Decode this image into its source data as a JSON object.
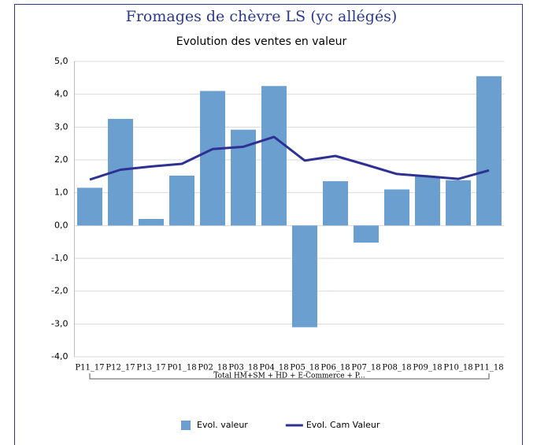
{
  "chart_data": {
    "type": "bar",
    "title": "Fromages de chèvre LS (yc allégés)",
    "subtitle": "Evolution des ventes en valeur",
    "categories": [
      "P11_17",
      "P12_17",
      "P13_17",
      "P01_18",
      "P02_18",
      "P03_18",
      "P04_18",
      "P05_18",
      "P06_18",
      "P07_18",
      "P08_18",
      "P09_18",
      "P10_18",
      "P11_18"
    ],
    "x_group_label": "Total HM+SM + HD + E-Commerce + P...",
    "series": [
      {
        "name": "Evol. valeur",
        "type": "bar",
        "color": "#6a9fd0",
        "values": [
          1.15,
          3.25,
          0.2,
          1.52,
          4.1,
          2.92,
          4.25,
          -3.1,
          1.35,
          -0.52,
          1.1,
          1.5,
          1.38,
          4.55
        ]
      },
      {
        "name": "Evol. Cam Valeur",
        "type": "line",
        "color": "#2e3192",
        "values": [
          1.4,
          1.7,
          1.8,
          1.88,
          2.33,
          2.4,
          2.7,
          1.98,
          2.12,
          1.85,
          1.57,
          1.5,
          1.42,
          1.68
        ]
      }
    ],
    "ylim": [
      -4,
      5
    ],
    "yticks": [
      {
        "value": -4,
        "label": "-4,0"
      },
      {
        "value": -3,
        "label": "-3,0"
      },
      {
        "value": -2,
        "label": "-2,0"
      },
      {
        "value": -1,
        "label": "-1,0"
      },
      {
        "value": 0,
        "label": "0,0"
      },
      {
        "value": 1,
        "label": "1,0"
      },
      {
        "value": 2,
        "label": "2,0"
      },
      {
        "value": 3,
        "label": "3,0"
      },
      {
        "value": 4,
        "label": "4,0"
      },
      {
        "value": 5,
        "label": "5,0"
      }
    ],
    "grid": true,
    "legend": "bottom"
  }
}
